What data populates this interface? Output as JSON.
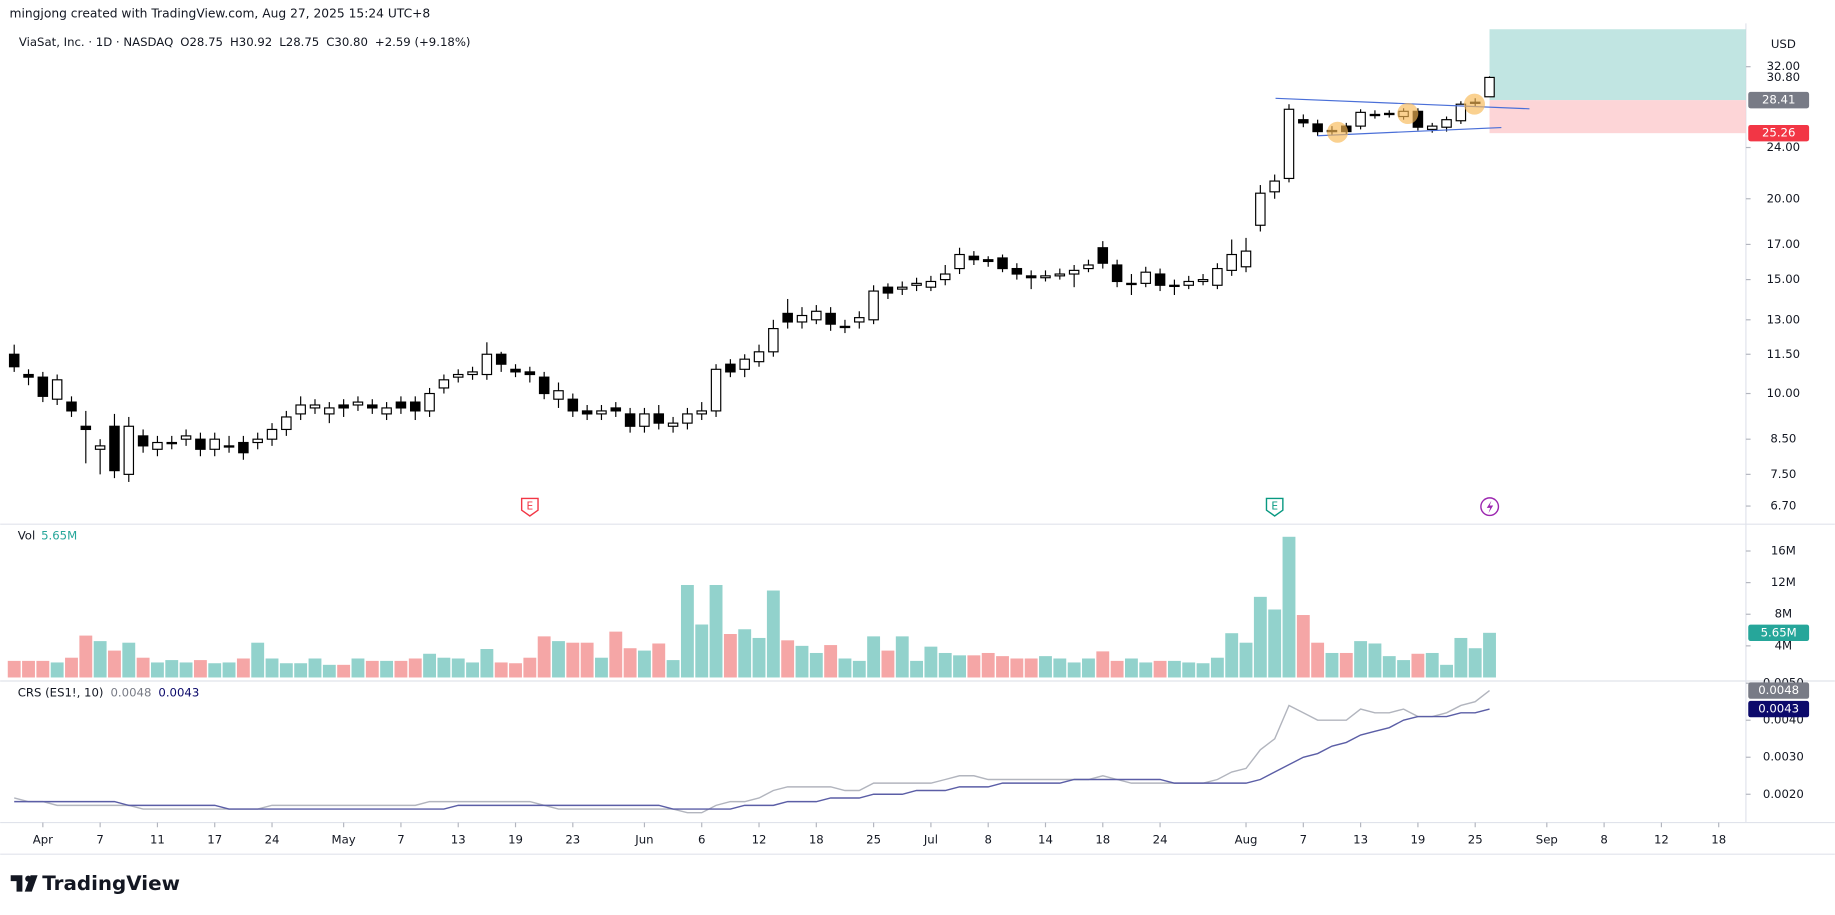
{
  "header": {
    "credit": "mingjong created with TradingView.com, Aug 27, 2025 15:24 UTC+8",
    "symbol": "ViaSat, Inc. · 1D · NASDAQ",
    "ohlc": [
      "O28.75",
      "H30.92",
      "L28.75",
      "C30.80"
    ],
    "change": "+2.59 (+9.18%)"
  },
  "footer": {
    "brand": "TradingView"
  },
  "chart_data": [
    {
      "type": "candlestick",
      "currency": "USD",
      "log_scale": true,
      "grid": false,
      "up_color": "#ffffff",
      "down_color": "#000000",
      "xlim": [
        -0.98,
        120.9
      ],
      "ylim": [
        6.36,
        37.33
      ],
      "yticks": [
        {
          "value": 32,
          "label": "32.00"
        },
        {
          "value": 24,
          "label": "24.00"
        },
        {
          "value": 20,
          "label": "20.00"
        },
        {
          "value": 17,
          "label": "17.00"
        },
        {
          "value": 15,
          "label": "15.00"
        },
        {
          "value": 13,
          "label": "13.00"
        },
        {
          "value": 11.5,
          "label": "11.50"
        },
        {
          "value": 10,
          "label": "10.00"
        },
        {
          "value": 8.5,
          "label": "8.50"
        },
        {
          "value": 7.5,
          "label": "7.50"
        },
        {
          "value": 6.7,
          "label": "6.70"
        }
      ],
      "close_label": "30.80",
      "position": {
        "entry": {
          "value": 28.41,
          "label": "28.41"
        },
        "stop": {
          "value": 25.26,
          "label": "25.26"
        },
        "profit_color": "#b2dfdb",
        "loss_color": "#fccbcd"
      },
      "events": [
        {
          "label": "E",
          "x": 36,
          "color": "#f23645"
        },
        {
          "label": "E",
          "x": 88,
          "color": "#089981"
        }
      ],
      "open": [
        11.5,
        10.7,
        10.6,
        9.8,
        9.7,
        8.9,
        8.2,
        8.9,
        7.5,
        8.6,
        8.2,
        8.4,
        8.5,
        8.5,
        8.2,
        8.3,
        8.4,
        8.4,
        8.5,
        8.8,
        9.3,
        9.5,
        9.3,
        9.6,
        9.6,
        9.6,
        9.3,
        9.7,
        9.7,
        9.4,
        10.2,
        10.6,
        10.7,
        10.7,
        11.5,
        10.9,
        10.8,
        10.6,
        9.8,
        9.8,
        9.4,
        9.3,
        9.5,
        9.3,
        8.9,
        9.3,
        8.9,
        9.0,
        9.3,
        9.4,
        11.1,
        10.9,
        11.2,
        11.6,
        13.3,
        12.9,
        13.0,
        13.3,
        12.7,
        12.9,
        13.0,
        14.6,
        14.5,
        14.7,
        14.6,
        15.0,
        15.6,
        16.3,
        16.1,
        16.2,
        15.6,
        15.2,
        15.1,
        15.2,
        15.3,
        15.6,
        16.8,
        15.8,
        14.8,
        14.8,
        15.3,
        14.7,
        14.7,
        14.9,
        14.7,
        15.5,
        15.7,
        18.2,
        20.5,
        21.5,
        26.5,
        26.1,
        25.5,
        25.9,
        25.9,
        27.0,
        27.0,
        26.8,
        27.3,
        25.6,
        25.8,
        26.4,
        28.1,
        28.75
      ],
      "high": [
        11.9,
        10.9,
        10.8,
        10.7,
        9.9,
        9.4,
        8.5,
        9.3,
        9.2,
        8.8,
        8.6,
        8.6,
        8.8,
        8.7,
        8.7,
        8.6,
        8.6,
        8.7,
        9.0,
        9.4,
        9.9,
        9.8,
        9.7,
        9.8,
        9.9,
        9.8,
        9.7,
        9.9,
        9.9,
        10.2,
        10.7,
        10.9,
        11.0,
        12.0,
        11.6,
        11.1,
        11.0,
        10.8,
        10.4,
        10.0,
        9.6,
        9.6,
        9.7,
        9.5,
        9.5,
        9.6,
        9.2,
        9.5,
        9.7,
        11.1,
        11.3,
        11.5,
        11.9,
        13.0,
        14.0,
        13.6,
        13.7,
        13.6,
        13.0,
        13.4,
        14.7,
        14.8,
        14.9,
        15.1,
        15.2,
        15.8,
        16.8,
        16.6,
        16.3,
        16.4,
        15.9,
        15.5,
        15.5,
        15.6,
        15.8,
        16.1,
        17.2,
        16.1,
        15.3,
        15.7,
        15.6,
        15.0,
        15.2,
        15.3,
        15.9,
        17.3,
        17.4,
        21.0,
        21.8,
        28.0,
        27.0,
        26.5,
        25.9,
        26.2,
        27.5,
        27.4,
        27.4,
        27.6,
        27.6,
        26.2,
        26.8,
        28.3,
        28.6,
        30.92
      ],
      "low": [
        10.8,
        10.3,
        9.7,
        9.6,
        9.2,
        7.8,
        7.5,
        7.4,
        7.3,
        8.1,
        8.0,
        8.2,
        8.3,
        8.0,
        8.0,
        8.1,
        7.9,
        8.2,
        8.3,
        8.6,
        9.1,
        9.3,
        9.0,
        9.2,
        9.4,
        9.3,
        9.1,
        9.3,
        9.1,
        9.2,
        10.0,
        10.4,
        10.5,
        10.5,
        10.8,
        10.6,
        10.4,
        9.8,
        9.5,
        9.2,
        9.1,
        9.1,
        9.2,
        8.7,
        8.7,
        8.8,
        8.7,
        8.8,
        9.1,
        9.2,
        10.6,
        10.6,
        11.0,
        11.4,
        12.6,
        12.6,
        12.8,
        12.5,
        12.4,
        12.6,
        12.8,
        14.0,
        14.2,
        14.4,
        14.4,
        14.7,
        15.3,
        15.8,
        15.7,
        15.4,
        15.0,
        14.5,
        14.9,
        15.0,
        14.6,
        15.4,
        15.6,
        14.6,
        14.2,
        14.6,
        14.4,
        14.2,
        14.5,
        14.7,
        14.5,
        15.2,
        15.4,
        17.8,
        20.0,
        21.2,
        25.8,
        25.0,
        25.1,
        25.1,
        25.6,
        26.6,
        26.7,
        26.5,
        25.5,
        25.3,
        25.4,
        26.1,
        27.8,
        28.75
      ],
      "close": [
        11.0,
        10.6,
        9.9,
        10.5,
        9.4,
        8.8,
        8.3,
        7.6,
        8.9,
        8.3,
        8.4,
        8.4,
        8.6,
        8.2,
        8.5,
        8.3,
        8.1,
        8.5,
        8.8,
        9.2,
        9.6,
        9.6,
        9.5,
        9.5,
        9.7,
        9.5,
        9.5,
        9.5,
        9.4,
        10.0,
        10.5,
        10.7,
        10.8,
        11.5,
        11.1,
        10.8,
        10.7,
        10.0,
        10.1,
        9.4,
        9.3,
        9.4,
        9.4,
        8.9,
        9.3,
        9.0,
        9.0,
        9.3,
        9.4,
        10.9,
        10.8,
        11.3,
        11.6,
        12.6,
        12.9,
        13.2,
        13.4,
        12.8,
        12.7,
        13.1,
        14.4,
        14.3,
        14.6,
        14.8,
        14.9,
        15.3,
        16.4,
        16.1,
        16.0,
        15.6,
        15.3,
        15.1,
        15.2,
        15.3,
        15.5,
        15.8,
        15.9,
        14.9,
        14.8,
        15.4,
        14.7,
        14.7,
        14.9,
        15.0,
        15.6,
        16.4,
        16.6,
        20.4,
        21.3,
        27.5,
        26.2,
        25.4,
        25.5,
        25.4,
        27.2,
        27.0,
        27.1,
        27.3,
        25.8,
        25.9,
        26.5,
        28.0,
        28.2,
        30.8
      ]
    },
    {
      "type": "bar",
      "title": "Vol",
      "value_label": "5.65M",
      "up_color": "#92d2cc",
      "down_color": "#f5a6a6",
      "xlim": [
        -0.98,
        120.9
      ],
      "ylim": [
        0,
        18.8
      ],
      "yticks": [
        {
          "value": 16,
          "label": "16M"
        },
        {
          "value": 12,
          "label": "12M"
        },
        {
          "value": 8,
          "label": "8M"
        },
        {
          "value": 4,
          "label": "4M"
        }
      ],
      "values": [
        2.1,
        2.1,
        2.1,
        1.9,
        2.5,
        5.3,
        4.6,
        3.4,
        4.4,
        2.5,
        1.9,
        2.2,
        1.9,
        2.2,
        1.8,
        1.9,
        2.4,
        4.4,
        2.4,
        1.8,
        1.8,
        2.4,
        1.6,
        1.6,
        2.4,
        2.1,
        2.1,
        2.1,
        2.4,
        3.0,
        2.5,
        2.4,
        1.9,
        3.6,
        1.9,
        1.8,
        2.5,
        5.2,
        4.6,
        4.4,
        4.4,
        2.5,
        5.8,
        3.7,
        3.4,
        4.3,
        2.2,
        11.7,
        6.7,
        11.7,
        5.5,
        6.1,
        5.0,
        11.0,
        4.7,
        4.0,
        3.1,
        4.1,
        2.4,
        2.1,
        5.2,
        3.4,
        5.2,
        2.1,
        3.9,
        3.1,
        2.8,
        2.8,
        3.1,
        2.7,
        2.4,
        2.4,
        2.7,
        2.4,
        1.9,
        2.4,
        3.3,
        2.1,
        2.4,
        1.9,
        2.1,
        2.1,
        1.9,
        1.8,
        2.5,
        5.6,
        4.4,
        10.2,
        8.6,
        17.8,
        7.9,
        4.4,
        3.1,
        3.1,
        4.6,
        4.3,
        2.7,
        2.2,
        3.0,
        3.1,
        1.6,
        5.0,
        3.7,
        5.65
      ]
    },
    {
      "type": "line",
      "title": "CRS (ES1!, 10)",
      "xlim": [
        -0.98,
        120.9
      ],
      "ylim": [
        0.00133,
        0.00506
      ],
      "yticks": [
        {
          "value": 0.005,
          "label": "0.0050"
        },
        {
          "value": 0.004,
          "label": "0.0040"
        },
        {
          "value": 0.003,
          "label": "0.0030"
        },
        {
          "value": 0.002,
          "label": "0.0020"
        }
      ],
      "xticks": [
        {
          "value": 2,
          "label": "Apr"
        },
        {
          "value": 6,
          "label": "7"
        },
        {
          "value": 10,
          "label": "11"
        },
        {
          "value": 14,
          "label": "17"
        },
        {
          "value": 18,
          "label": "24"
        },
        {
          "value": 23,
          "label": "May"
        },
        {
          "value": 27,
          "label": "7"
        },
        {
          "value": 31,
          "label": "13"
        },
        {
          "value": 35,
          "label": "19"
        },
        {
          "value": 39,
          "label": "23"
        },
        {
          "value": 44,
          "label": "Jun"
        },
        {
          "value": 48,
          "label": "6"
        },
        {
          "value": 52,
          "label": "12"
        },
        {
          "value": 56,
          "label": "18"
        },
        {
          "value": 60,
          "label": "25"
        },
        {
          "value": 64,
          "label": "Jul"
        },
        {
          "value": 68,
          "label": "8"
        },
        {
          "value": 72,
          "label": "14"
        },
        {
          "value": 76,
          "label": "18"
        },
        {
          "value": 80,
          "label": "24"
        },
        {
          "value": 86,
          "label": "Aug"
        },
        {
          "value": 90,
          "label": "7"
        },
        {
          "value": 94,
          "label": "13"
        },
        {
          "value": 98,
          "label": "19"
        },
        {
          "value": 102,
          "label": "25"
        },
        {
          "value": 107,
          "label": "Sep"
        },
        {
          "value": 111,
          "label": "8"
        },
        {
          "value": 115,
          "label": "12"
        },
        {
          "value": 119,
          "label": "18"
        }
      ],
      "series": [
        {
          "color": "#b2b5be",
          "tag_color": "#787b86",
          "last_label": "0.0048",
          "values": [
            0.0019,
            0.0018,
            0.0018,
            0.0017,
            0.0017,
            0.0017,
            0.0017,
            0.0017,
            0.0017,
            0.0016,
            0.0016,
            0.0016,
            0.0016,
            0.0016,
            0.0016,
            0.0016,
            0.0016,
            0.0016,
            0.0017,
            0.0017,
            0.0017,
            0.0017,
            0.0017,
            0.0017,
            0.0017,
            0.0017,
            0.0017,
            0.0017,
            0.0017,
            0.0018,
            0.0018,
            0.0018,
            0.0018,
            0.0018,
            0.0018,
            0.0018,
            0.0018,
            0.0017,
            0.0016,
            0.0016,
            0.0016,
            0.0016,
            0.0016,
            0.0016,
            0.0016,
            0.0016,
            0.0016,
            0.0015,
            0.0015,
            0.0017,
            0.0018,
            0.0018,
            0.0019,
            0.0021,
            0.0022,
            0.0022,
            0.0022,
            0.0022,
            0.0021,
            0.0021,
            0.0023,
            0.0023,
            0.0023,
            0.0023,
            0.0023,
            0.0024,
            0.0025,
            0.0025,
            0.0024,
            0.0024,
            0.0024,
            0.0024,
            0.0024,
            0.0024,
            0.0024,
            0.0024,
            0.0025,
            0.0024,
            0.0023,
            0.0023,
            0.0023,
            0.0023,
            0.0023,
            0.0023,
            0.0024,
            0.0026,
            0.0027,
            0.0032,
            0.0035,
            0.0044,
            0.0042,
            0.004,
            0.004,
            0.004,
            0.0043,
            0.0042,
            0.0042,
            0.0043,
            0.0041,
            0.0041,
            0.0042,
            0.0044,
            0.0045,
            0.0048
          ]
        },
        {
          "color": "#5b5ea6",
          "tag_color": "#0c0a6b",
          "last_label": "0.0043",
          "values": [
            0.0018,
            0.0018,
            0.0018,
            0.0018,
            0.0018,
            0.0018,
            0.0018,
            0.0018,
            0.0017,
            0.0017,
            0.0017,
            0.0017,
            0.0017,
            0.0017,
            0.0017,
            0.0016,
            0.0016,
            0.0016,
            0.0016,
            0.0016,
            0.0016,
            0.0016,
            0.0016,
            0.0016,
            0.0016,
            0.0016,
            0.0016,
            0.0016,
            0.0016,
            0.0016,
            0.0016,
            0.0017,
            0.0017,
            0.0017,
            0.0017,
            0.0017,
            0.0017,
            0.0017,
            0.0017,
            0.0017,
            0.0017,
            0.0017,
            0.0017,
            0.0017,
            0.0017,
            0.0017,
            0.0016,
            0.0016,
            0.0016,
            0.0016,
            0.0016,
            0.0017,
            0.0017,
            0.0017,
            0.0018,
            0.0018,
            0.0018,
            0.0019,
            0.0019,
            0.0019,
            0.002,
            0.002,
            0.002,
            0.0021,
            0.0021,
            0.0021,
            0.0022,
            0.0022,
            0.0022,
            0.0023,
            0.0023,
            0.0023,
            0.0023,
            0.0023,
            0.0024,
            0.0024,
            0.0024,
            0.0024,
            0.0024,
            0.0024,
            0.0024,
            0.0023,
            0.0023,
            0.0023,
            0.0023,
            0.0023,
            0.0023,
            0.0024,
            0.0026,
            0.0028,
            0.003,
            0.0031,
            0.0033,
            0.0034,
            0.0036,
            0.0037,
            0.0038,
            0.004,
            0.0041,
            0.0041,
            0.0041,
            0.0042,
            0.0042,
            0.0043
          ]
        }
      ]
    }
  ]
}
